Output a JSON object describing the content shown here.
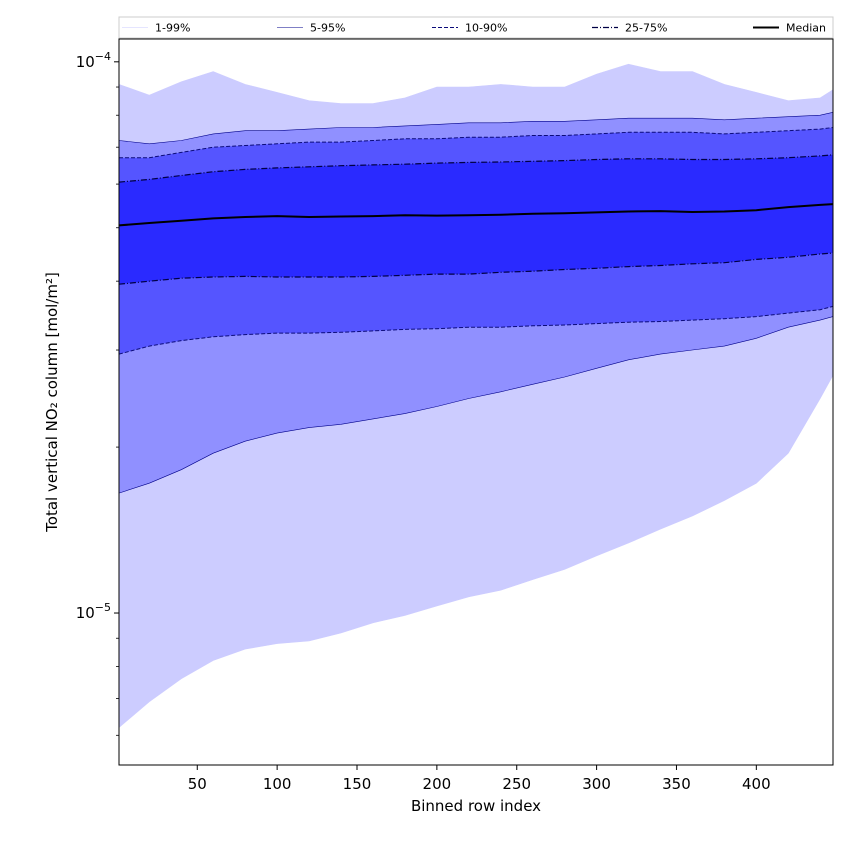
{
  "chart_data": {
    "type": "area",
    "xlabel": "Binned row index",
    "ylabel": "Total vertical NO₂ column [mol/m²]",
    "yscale": "log",
    "xlim": [
      1,
      448
    ],
    "ylim": [
      5.3e-06,
      0.00011
    ],
    "xticks": [
      50,
      100,
      150,
      200,
      250,
      300,
      350,
      400
    ],
    "yticks": [
      {
        "value": 0.0001,
        "base": "10",
        "exp": "−4"
      },
      {
        "value": 1e-05,
        "base": "10",
        "exp": "−5"
      }
    ],
    "legend_position": "top (horizontal strip)",
    "fill_colors": {
      "1-99%": "#ccccff",
      "5-95%": "#9090ff",
      "10-90%": "#5555ff",
      "25-75%": "#2a2aff"
    },
    "line_colors": {
      "1-99%": "#ccccff",
      "5-95%": "#00008b",
      "10-90%": "#0b0b7a",
      "25-75%": "#000044",
      "Median": "#000000"
    },
    "x": [
      1,
      20,
      40,
      60,
      80,
      100,
      120,
      140,
      160,
      180,
      200,
      220,
      240,
      260,
      280,
      300,
      320,
      340,
      360,
      380,
      400,
      420,
      440,
      448
    ],
    "series": [
      {
        "name": "1-99%",
        "style": "solid-thin",
        "upper": [
          9.1e-05,
          8.7e-05,
          9.2e-05,
          9.6e-05,
          9.1e-05,
          8.8e-05,
          8.5e-05,
          8.4e-05,
          8.4e-05,
          8.6e-05,
          9e-05,
          9e-05,
          9.1e-05,
          9e-05,
          9e-05,
          9.5e-05,
          9.9e-05,
          9.6e-05,
          9.6e-05,
          9.1e-05,
          8.8e-05,
          8.5e-05,
          8.6e-05,
          8.9e-05
        ],
        "lower": [
          6.2e-06,
          6.9e-06,
          7.6e-06,
          8.2e-06,
          8.6e-06,
          8.8e-06,
          8.9e-06,
          9.2e-06,
          9.6e-06,
          9.9e-06,
          1.03e-05,
          1.07e-05,
          1.1e-05,
          1.15e-05,
          1.2e-05,
          1.27e-05,
          1.34e-05,
          1.42e-05,
          1.5e-05,
          1.6e-05,
          1.72e-05,
          1.95e-05,
          2.45e-05,
          2.7e-05
        ]
      },
      {
        "name": "5-95%",
        "style": "solid-thin",
        "upper": [
          7.2e-05,
          7.1e-05,
          7.2e-05,
          7.4e-05,
          7.5e-05,
          7.5e-05,
          7.55e-05,
          7.6e-05,
          7.6e-05,
          7.65e-05,
          7.7e-05,
          7.75e-05,
          7.75e-05,
          7.8e-05,
          7.8e-05,
          7.85e-05,
          7.9e-05,
          7.9e-05,
          7.9e-05,
          7.85e-05,
          7.9e-05,
          7.95e-05,
          8e-05,
          8.1e-05
        ],
        "lower": [
          1.65e-05,
          1.72e-05,
          1.82e-05,
          1.95e-05,
          2.05e-05,
          2.12e-05,
          2.17e-05,
          2.2e-05,
          2.25e-05,
          2.3e-05,
          2.37e-05,
          2.45e-05,
          2.52e-05,
          2.6e-05,
          2.68e-05,
          2.78e-05,
          2.88e-05,
          2.95e-05,
          3e-05,
          3.05e-05,
          3.15e-05,
          3.3e-05,
          3.4e-05,
          3.45e-05
        ]
      },
      {
        "name": "10-90%",
        "style": "dashed",
        "upper": [
          6.7e-05,
          6.7e-05,
          6.85e-05,
          7e-05,
          7.05e-05,
          7.1e-05,
          7.15e-05,
          7.15e-05,
          7.2e-05,
          7.25e-05,
          7.25e-05,
          7.3e-05,
          7.3e-05,
          7.35e-05,
          7.35e-05,
          7.4e-05,
          7.45e-05,
          7.45e-05,
          7.45e-05,
          7.4e-05,
          7.45e-05,
          7.5e-05,
          7.55e-05,
          7.6e-05
        ],
        "lower": [
          2.95e-05,
          3.05e-05,
          3.12e-05,
          3.17e-05,
          3.2e-05,
          3.22e-05,
          3.22e-05,
          3.23e-05,
          3.25e-05,
          3.27e-05,
          3.28e-05,
          3.3e-05,
          3.3e-05,
          3.32e-05,
          3.33e-05,
          3.35e-05,
          3.37e-05,
          3.38e-05,
          3.4e-05,
          3.42e-05,
          3.45e-05,
          3.5e-05,
          3.55e-05,
          3.6e-05
        ]
      },
      {
        "name": "25-75%",
        "style": "dashdot",
        "upper": [
          6.05e-05,
          6.12e-05,
          6.22e-05,
          6.32e-05,
          6.38e-05,
          6.42e-05,
          6.45e-05,
          6.48e-05,
          6.5e-05,
          6.52e-05,
          6.55e-05,
          6.57e-05,
          6.58e-05,
          6.6e-05,
          6.62e-05,
          6.65e-05,
          6.67e-05,
          6.67e-05,
          6.65e-05,
          6.65e-05,
          6.67e-05,
          6.7e-05,
          6.75e-05,
          6.78e-05
        ],
        "lower": [
          3.95e-05,
          4e-05,
          4.05e-05,
          4.07e-05,
          4.08e-05,
          4.07e-05,
          4.07e-05,
          4.07e-05,
          4.08e-05,
          4.1e-05,
          4.12e-05,
          4.12e-05,
          4.15e-05,
          4.17e-05,
          4.2e-05,
          4.22e-05,
          4.25e-05,
          4.27e-05,
          4.3e-05,
          4.32e-05,
          4.38e-05,
          4.42e-05,
          4.48e-05,
          4.5e-05
        ]
      },
      {
        "name": "Median",
        "style": "solid-thick",
        "values": [
          5.05e-05,
          5.1e-05,
          5.15e-05,
          5.2e-05,
          5.23e-05,
          5.25e-05,
          5.23e-05,
          5.24e-05,
          5.25e-05,
          5.27e-05,
          5.26e-05,
          5.27e-05,
          5.28e-05,
          5.3e-05,
          5.31e-05,
          5.33e-05,
          5.35e-05,
          5.36e-05,
          5.34e-05,
          5.35e-05,
          5.38e-05,
          5.45e-05,
          5.5e-05,
          5.52e-05
        ]
      }
    ]
  }
}
